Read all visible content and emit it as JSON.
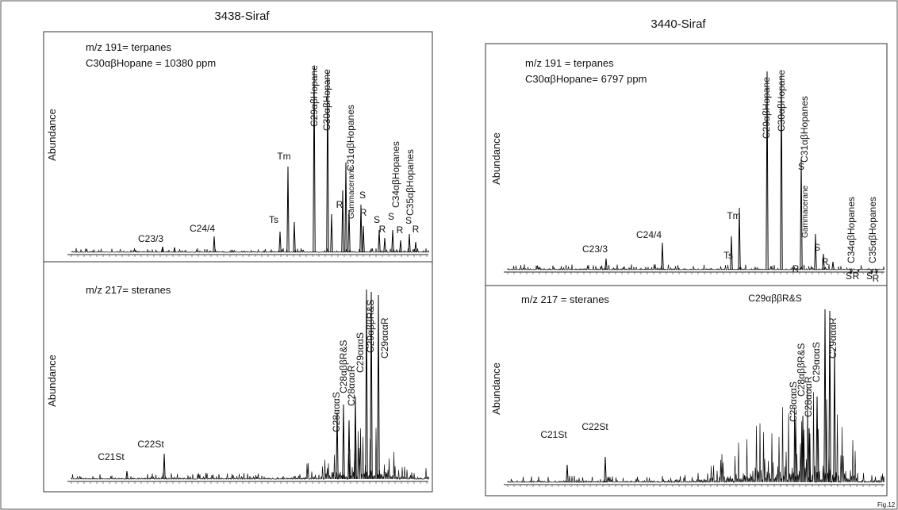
{
  "figure_label": "Fig.12",
  "panels": [
    {
      "title": "3438-Siraf",
      "terpanes": {
        "y_label": "Abundance",
        "annotations": [
          "m/z 191= terpanes",
          "C30αβHopane = 10380 ppm"
        ],
        "peaks": [
          "C23/3",
          "C24/4",
          "Ts",
          "Tm",
          "C29αβHopane",
          "C30αβHopane",
          "R",
          "Gammacerane",
          "C31αβHopanes",
          "S",
          "R",
          "S",
          "R",
          "S",
          "R",
          "S",
          "R",
          "C34αβHopanes",
          "C35αβHopanes"
        ]
      },
      "steranes": {
        "y_label": "Abundance",
        "annotations": [
          "m/z 217= steranes"
        ],
        "peaks": [
          "C21St",
          "C22St",
          "C28αααS",
          "C28αββR&S",
          "C28αααR",
          "C29αααS",
          "C29αββR&S",
          "C29αααR"
        ]
      }
    },
    {
      "title": "3440-Siraf",
      "terpanes": {
        "y_label": "Abundance",
        "annotations": [
          "m/z 191 = terpanes",
          "C30αβHopane= 6797 ppm"
        ],
        "peaks": [
          "C23/3",
          "C24/4",
          "Ts",
          "Tm",
          "C29αβHopane",
          "C30αβHopane",
          "S",
          "R",
          "Gammacerane",
          "C31αβHopanes",
          "S",
          "R",
          "C34αβHopanes",
          "C35αβHopanes",
          "S",
          "R",
          "S",
          "R"
        ]
      },
      "steranes": {
        "y_label": "Abundance",
        "annotations": [
          "m/z 217 = steranes"
        ],
        "peaks": [
          "C21St",
          "C22St",
          "C28αααS",
          "C28αββR&S",
          "C28αααR",
          "C29αααS",
          "C29αββR&S",
          "C29αααR"
        ]
      }
    }
  ]
}
